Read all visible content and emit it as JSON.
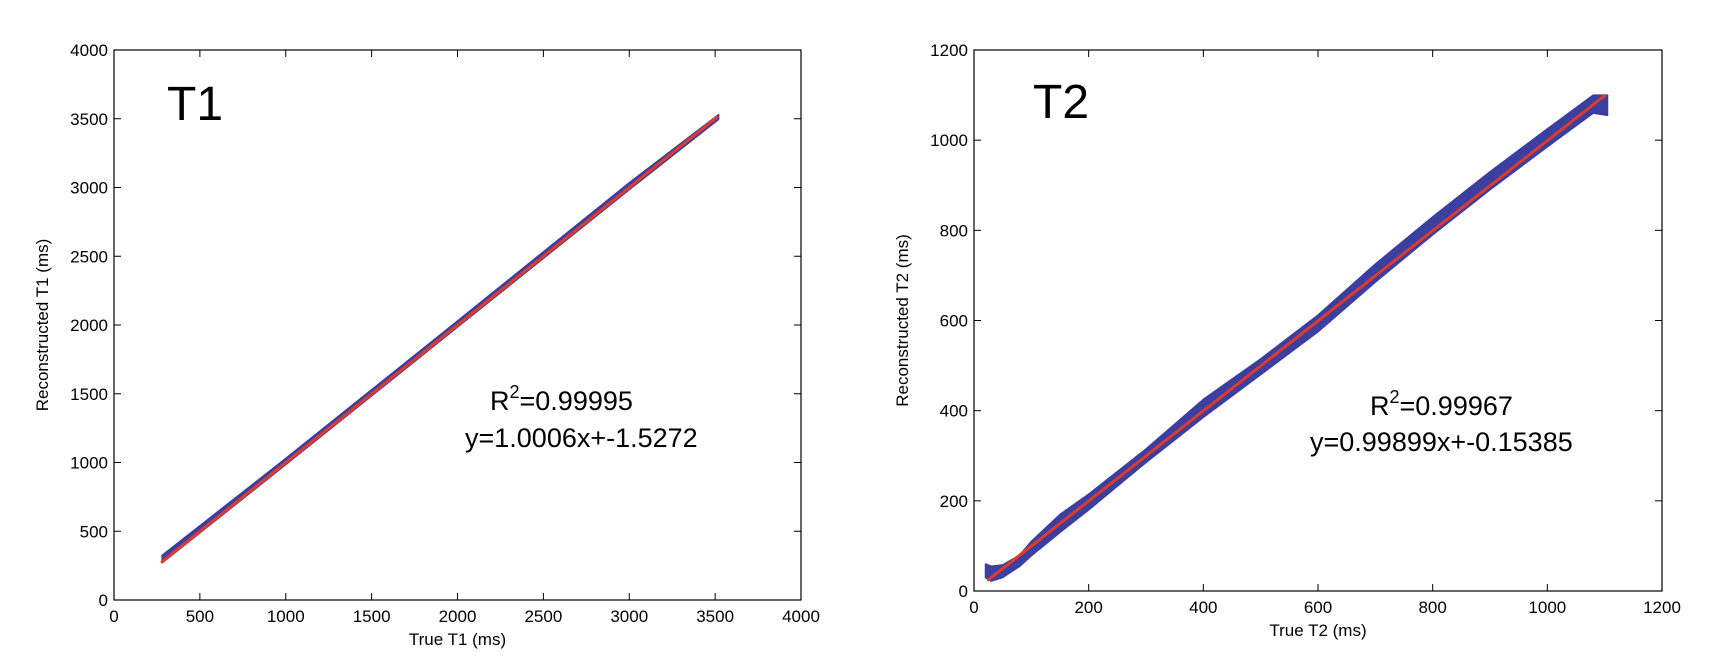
{
  "colors": {
    "data_band": "#3b3fa0",
    "fit_line": "#e03a2a",
    "axes": "#000000",
    "background": "#ffffff"
  },
  "chart_data": [
    {
      "type": "scatter",
      "panel_title": "T1",
      "xlabel": "True T1 (ms)",
      "ylabel": "Reconstructed T1 (ms)",
      "xlim": [
        0,
        4000
      ],
      "ylim": [
        0,
        4000
      ],
      "xticks": [
        0,
        500,
        1000,
        1500,
        2000,
        2500,
        3000,
        3500,
        4000
      ],
      "yticks": [
        0,
        500,
        1000,
        1500,
        2000,
        2500,
        3000,
        3500,
        4000
      ],
      "grid": false,
      "r2_prefix": "R",
      "r2_sup": "2",
      "r2_value": "=0.99995",
      "fit_equation": "y=1.0006x+-1.5272",
      "fit": {
        "slope": 1.0006,
        "intercept": -1.5272,
        "x_range": [
          280,
          3510
        ]
      },
      "band": {
        "x": [
          280,
          1000,
          2000,
          3000,
          3520
        ],
        "y_low": [
          270,
          985,
          1985,
          2985,
          3495
        ],
        "y_high": [
          325,
          1030,
          2030,
          3035,
          3530
        ]
      }
    },
    {
      "type": "scatter",
      "panel_title": "T2",
      "xlabel": "True T2 (ms)",
      "ylabel": "Reconstructed T2 (ms)",
      "xlim": [
        0,
        1200
      ],
      "ylim": [
        0,
        1200
      ],
      "xticks": [
        0,
        200,
        400,
        600,
        800,
        1000,
        1200
      ],
      "yticks": [
        0,
        200,
        400,
        600,
        800,
        1000,
        1200
      ],
      "grid": false,
      "r2_prefix": "R",
      "r2_sup": "2",
      "r2_value": "=0.99967",
      "fit_equation": "y=0.99899x+-0.15385",
      "fit": {
        "slope": 0.99899,
        "intercept": -0.15385,
        "x_range": [
          25,
          1100
        ]
      },
      "band": {
        "x": [
          20,
          30,
          50,
          80,
          100,
          150,
          200,
          300,
          400,
          500,
          600,
          700,
          800,
          900,
          1000,
          1080,
          1105
        ],
        "y_low": [
          30,
          22,
          30,
          55,
          78,
          130,
          180,
          285,
          385,
          480,
          575,
          685,
          790,
          890,
          985,
          1060,
          1055
        ],
        "y_high": [
          60,
          55,
          58,
          80,
          110,
          170,
          215,
          315,
          425,
          515,
          612,
          725,
          830,
          930,
          1025,
          1100,
          1100
        ]
      }
    }
  ]
}
